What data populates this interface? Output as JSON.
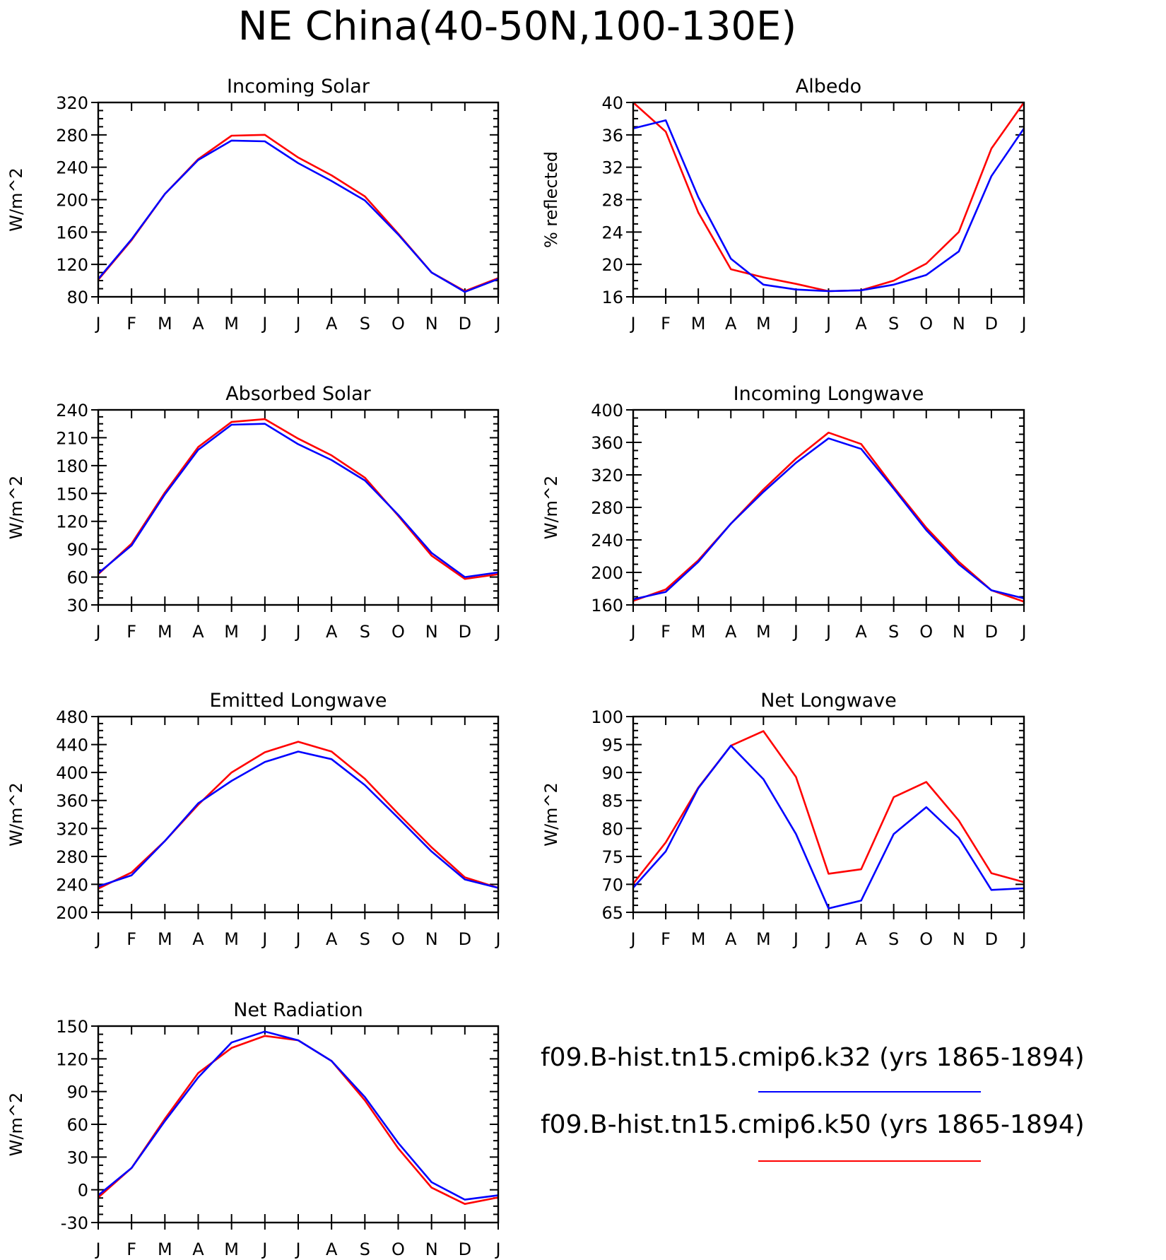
{
  "page_title": "NE China(40-50N,100-130E)",
  "colors": {
    "series_k32": "#0000ff",
    "series_k50": "#ff0000",
    "axis": "#000000"
  },
  "legend": {
    "entries": [
      {
        "label": "f09.B-hist.tn15.cmip6.k32 (yrs 1865-1894)",
        "color": "#0000ff"
      },
      {
        "label": "f09.B-hist.tn15.cmip6.k50 (yrs 1865-1894)",
        "color": "#ff0000"
      }
    ]
  },
  "chart_data": [
    {
      "id": "incoming-solar",
      "type": "line",
      "title": "Incoming Solar",
      "ylabel": "W/m^2",
      "categories": [
        "J",
        "F",
        "M",
        "A",
        "M",
        "J",
        "J",
        "A",
        "S",
        "O",
        "N",
        "D",
        "J"
      ],
      "ylim": [
        80,
        320
      ],
      "yticks": [
        80,
        120,
        160,
        200,
        240,
        280,
        320
      ],
      "series": [
        {
          "color": "#ff0000",
          "values": [
            101,
            150,
            207,
            250,
            279,
            280,
            252,
            230,
            204,
            158,
            110,
            87,
            103
          ]
        },
        {
          "color": "#0000ff",
          "values": [
            102,
            151,
            207,
            249,
            273,
            272,
            245,
            223,
            199,
            157,
            110,
            86,
            102
          ]
        }
      ]
    },
    {
      "id": "albedo",
      "type": "line",
      "title": "Albedo",
      "ylabel": "% reflected",
      "categories": [
        "J",
        "F",
        "M",
        "A",
        "M",
        "J",
        "J",
        "A",
        "S",
        "O",
        "N",
        "D",
        "J"
      ],
      "ylim": [
        16,
        40
      ],
      "yticks": [
        16,
        20,
        24,
        28,
        32,
        36,
        40
      ],
      "series": [
        {
          "color": "#ff0000",
          "values": [
            40.0,
            36.4,
            26.4,
            19.4,
            18.4,
            17.6,
            16.7,
            16.8,
            18.0,
            20.1,
            24.0,
            34.3,
            40.0
          ]
        },
        {
          "color": "#0000ff",
          "values": [
            36.8,
            37.8,
            28.3,
            20.7,
            17.5,
            16.9,
            16.7,
            16.8,
            17.5,
            18.7,
            21.6,
            30.9,
            36.8
          ]
        }
      ]
    },
    {
      "id": "absorbed-solar",
      "type": "line",
      "title": "Absorbed Solar",
      "ylabel": "W/m^2",
      "categories": [
        "J",
        "F",
        "M",
        "A",
        "M",
        "J",
        "J",
        "A",
        "S",
        "O",
        "N",
        "D",
        "J"
      ],
      "ylim": [
        30,
        240
      ],
      "yticks": [
        30,
        60,
        90,
        120,
        150,
        180,
        210,
        240
      ],
      "series": [
        {
          "color": "#ff0000",
          "values": [
            63,
            96,
            151,
            200,
            227,
            230,
            209,
            191,
            167,
            126,
            83,
            58,
            63
          ]
        },
        {
          "color": "#0000ff",
          "values": [
            64,
            94,
            149,
            197,
            224,
            225,
            203,
            186,
            164,
            127,
            86,
            60,
            65
          ]
        }
      ]
    },
    {
      "id": "incoming-longwave",
      "type": "line",
      "title": "Incoming Longwave",
      "ylabel": "W/m^2",
      "categories": [
        "J",
        "F",
        "M",
        "A",
        "M",
        "J",
        "J",
        "A",
        "S",
        "O",
        "N",
        "D",
        "J"
      ],
      "ylim": [
        160,
        400
      ],
      "yticks": [
        160,
        200,
        240,
        280,
        320,
        360,
        400
      ],
      "series": [
        {
          "color": "#ff0000",
          "values": [
            165,
            179,
            215,
            260,
            302,
            340,
            372,
            358,
            305,
            255,
            213,
            178,
            164
          ]
        },
        {
          "color": "#0000ff",
          "values": [
            167,
            176,
            213,
            260,
            299,
            335,
            365,
            352,
            303,
            252,
            210,
            178,
            168
          ]
        }
      ]
    },
    {
      "id": "emitted-longwave",
      "type": "line",
      "title": "Emitted Longwave",
      "ylabel": "W/m^2",
      "categories": [
        "J",
        "F",
        "M",
        "A",
        "M",
        "J",
        "J",
        "A",
        "S",
        "O",
        "N",
        "D",
        "J"
      ],
      "ylim": [
        200,
        480
      ],
      "yticks": [
        200,
        240,
        280,
        320,
        360,
        400,
        440,
        480
      ],
      "series": [
        {
          "color": "#ff0000",
          "values": [
            234,
            257,
            302,
            354,
            400,
            429,
            444,
            430,
            391,
            341,
            293,
            250,
            235
          ]
        },
        {
          "color": "#0000ff",
          "values": [
            237,
            253,
            302,
            356,
            388,
            415,
            430,
            419,
            382,
            335,
            287,
            247,
            235
          ]
        }
      ]
    },
    {
      "id": "net-longwave",
      "type": "line",
      "title": "Net Longwave",
      "ylabel": "W/m^2",
      "categories": [
        "J",
        "F",
        "M",
        "A",
        "M",
        "J",
        "J",
        "A",
        "S",
        "O",
        "N",
        "D",
        "J"
      ],
      "ylim": [
        65,
        100
      ],
      "yticks": [
        65,
        70,
        75,
        80,
        85,
        90,
        95,
        100
      ],
      "series": [
        {
          "color": "#ff0000",
          "values": [
            70.1,
            77.5,
            87.3,
            94.8,
            97.4,
            89.2,
            71.9,
            72.7,
            85.6,
            88.3,
            81.4,
            72.0,
            70.4
          ]
        },
        {
          "color": "#0000ff",
          "values": [
            69.4,
            75.9,
            87.2,
            94.8,
            88.8,
            79.0,
            65.7,
            67.1,
            79.0,
            83.8,
            78.3,
            69.0,
            69.3
          ]
        }
      ]
    },
    {
      "id": "net-radiation",
      "type": "line",
      "title": "Net Radiation",
      "ylabel": "W/m^2",
      "categories": [
        "J",
        "F",
        "M",
        "A",
        "M",
        "J",
        "J",
        "A",
        "S",
        "O",
        "N",
        "D",
        "J"
      ],
      "ylim": [
        -30,
        150
      ],
      "yticks": [
        -30,
        0,
        30,
        60,
        90,
        120,
        150
      ],
      "series": [
        {
          "color": "#ff0000",
          "values": [
            -7,
            20,
            65,
            107,
            130,
            141,
            137,
            118,
            82,
            38,
            2,
            -13,
            -7
          ]
        },
        {
          "color": "#0000ff",
          "values": [
            -5,
            20,
            63,
            103,
            135,
            145,
            137,
            118,
            85,
            43,
            7,
            -9,
            -5
          ]
        }
      ]
    }
  ]
}
